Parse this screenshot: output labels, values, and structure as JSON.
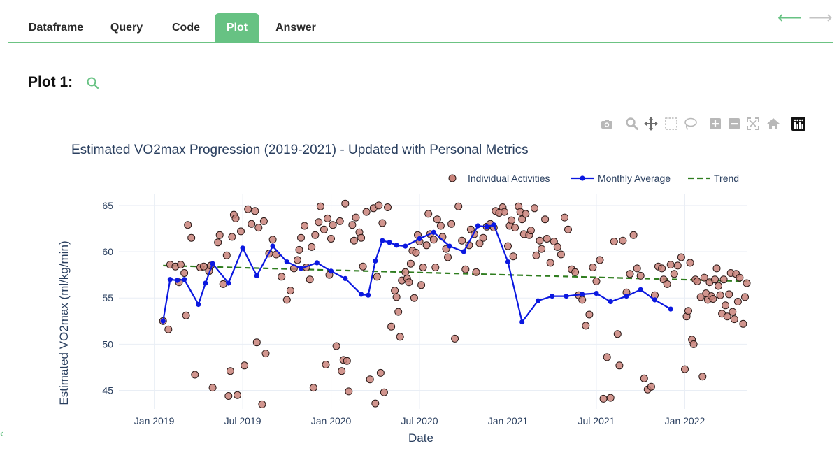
{
  "tabs": [
    {
      "label": "Dataframe",
      "active": false
    },
    {
      "label": "Query",
      "active": false
    },
    {
      "label": "Code",
      "active": false
    },
    {
      "label": "Plot",
      "active": true
    },
    {
      "label": "Answer",
      "active": false
    }
  ],
  "nav": {
    "back": "⟵",
    "forward": "⟶",
    "back_color": "#67c283",
    "forward_color": "#c4c4c4"
  },
  "plot_heading": "Plot 1:",
  "accent_color": "#67c283",
  "left_marker": "‹",
  "modebar_icons": [
    "camera-icon",
    "zoom-icon",
    "pan-icon",
    "box-select-icon",
    "lasso-icon",
    "zoom-in-icon",
    "zoom-out-icon",
    "autoscale-icon",
    "reset-home-icon",
    "plotly-logo-icon"
  ],
  "chart_data": {
    "type": "scatter",
    "title": "Estimated VO2max Progression (2019-2021) - Updated with Personal Metrics",
    "xlabel": "Date",
    "ylabel": "Estimated VO2max (ml/kg/min)",
    "xlim": [
      2018.8,
      2022.35
    ],
    "ylim": [
      43,
      66.2
    ],
    "x_ticks": [
      {
        "v": 2019.0,
        "label": "Jan 2019"
      },
      {
        "v": 2019.5,
        "label": "Jul 2019"
      },
      {
        "v": 2020.0,
        "label": "Jan 2020"
      },
      {
        "v": 2020.5,
        "label": "Jul 2020"
      },
      {
        "v": 2021.0,
        "label": "Jan 2021"
      },
      {
        "v": 2021.5,
        "label": "Jul 2021"
      },
      {
        "v": 2022.0,
        "label": "Jan 2022"
      }
    ],
    "y_ticks": [
      45,
      50,
      55,
      60,
      65
    ],
    "legend": {
      "position": "top-right",
      "entries": [
        "Individual Activities",
        "Monthly Average",
        "Trend"
      ]
    },
    "series": [
      {
        "name": "Individual Activities",
        "kind": "markers",
        "color": "#c9837a",
        "points": [
          [
            2019.05,
            52.5
          ],
          [
            2019.08,
            51.6
          ],
          [
            2019.09,
            58.6
          ],
          [
            2019.12,
            58.4
          ],
          [
            2019.14,
            56.7
          ],
          [
            2019.15,
            58.6
          ],
          [
            2019.17,
            57.7
          ],
          [
            2019.18,
            53.1
          ],
          [
            2019.19,
            62.9
          ],
          [
            2019.21,
            61.5
          ],
          [
            2019.23,
            46.7
          ],
          [
            2019.26,
            58.3
          ],
          [
            2019.28,
            58.4
          ],
          [
            2019.31,
            57.9
          ],
          [
            2019.32,
            58.5
          ],
          [
            2019.33,
            45.3
          ],
          [
            2019.36,
            61.0
          ],
          [
            2019.37,
            61.8
          ],
          [
            2019.39,
            56.5
          ],
          [
            2019.41,
            59.6
          ],
          [
            2019.42,
            44.4
          ],
          [
            2019.43,
            47.1
          ],
          [
            2019.44,
            61.6
          ],
          [
            2019.45,
            64.0
          ],
          [
            2019.46,
            63.6
          ],
          [
            2019.47,
            44.5
          ],
          [
            2019.49,
            62.2
          ],
          [
            2019.51,
            47.7
          ],
          [
            2019.53,
            64.6
          ],
          [
            2019.55,
            63.0
          ],
          [
            2019.57,
            64.4
          ],
          [
            2019.58,
            50.2
          ],
          [
            2019.59,
            62.6
          ],
          [
            2019.61,
            43.5
          ],
          [
            2019.62,
            63.3
          ],
          [
            2019.63,
            49.0
          ],
          [
            2019.65,
            59.8
          ],
          [
            2019.67,
            61.3
          ],
          [
            2019.69,
            59.7
          ],
          [
            2019.72,
            57.3
          ],
          [
            2019.75,
            54.8
          ],
          [
            2019.77,
            55.8
          ],
          [
            2019.79,
            58.2
          ],
          [
            2019.81,
            59.1
          ],
          [
            2019.82,
            60.2
          ],
          [
            2019.83,
            61.5
          ],
          [
            2019.85,
            62.8
          ],
          [
            2019.86,
            58.3
          ],
          [
            2019.88,
            57.0
          ],
          [
            2019.89,
            60.5
          ],
          [
            2019.9,
            45.3
          ],
          [
            2019.91,
            61.8
          ],
          [
            2019.93,
            63.2
          ],
          [
            2019.94,
            64.9
          ],
          [
            2019.96,
            62.4
          ],
          [
            2019.97,
            47.8
          ],
          [
            2019.98,
            63.6
          ],
          [
            2019.99,
            57.5
          ],
          [
            2020.0,
            61.4
          ],
          [
            2020.01,
            62.9
          ],
          [
            2020.03,
            49.8
          ],
          [
            2020.05,
            63.3
          ],
          [
            2020.06,
            47.1
          ],
          [
            2020.07,
            48.3
          ],
          [
            2020.08,
            65.2
          ],
          [
            2020.09,
            48.2
          ],
          [
            2020.1,
            44.9
          ],
          [
            2020.12,
            62.9
          ],
          [
            2020.13,
            61.2
          ],
          [
            2020.14,
            63.7
          ],
          [
            2020.16,
            62.1
          ],
          [
            2020.17,
            61.5
          ],
          [
            2020.18,
            58.4
          ],
          [
            2020.2,
            64.3
          ],
          [
            2020.22,
            46.2
          ],
          [
            2020.24,
            64.7
          ],
          [
            2020.25,
            43.6
          ],
          [
            2020.26,
            57.3
          ],
          [
            2020.27,
            65.0
          ],
          [
            2020.28,
            46.9
          ],
          [
            2020.29,
            63.1
          ],
          [
            2020.3,
            44.8
          ],
          [
            2020.32,
            64.8
          ],
          [
            2020.34,
            51.9
          ],
          [
            2020.36,
            55.8
          ],
          [
            2020.37,
            55.1
          ],
          [
            2020.38,
            53.5
          ],
          [
            2020.39,
            50.8
          ],
          [
            2020.4,
            56.9
          ],
          [
            2020.42,
            57.8
          ],
          [
            2020.43,
            57.1
          ],
          [
            2020.44,
            56.7
          ],
          [
            2020.45,
            58.7
          ],
          [
            2020.46,
            60.1
          ],
          [
            2020.47,
            55.0
          ],
          [
            2020.48,
            59.9
          ],
          [
            2020.49,
            61.8
          ],
          [
            2020.5,
            61.1
          ],
          [
            2020.51,
            56.4
          ],
          [
            2020.52,
            58.3
          ],
          [
            2020.54,
            60.7
          ],
          [
            2020.55,
            64.1
          ],
          [
            2020.56,
            61.9
          ],
          [
            2020.58,
            61.3
          ],
          [
            2020.59,
            58.3
          ],
          [
            2020.6,
            63.5
          ],
          [
            2020.62,
            62.8
          ],
          [
            2020.63,
            61.6
          ],
          [
            2020.65,
            60.3
          ],
          [
            2020.66,
            59.4
          ],
          [
            2020.68,
            63.0
          ],
          [
            2020.7,
            50.6
          ],
          [
            2020.72,
            64.9
          ],
          [
            2020.74,
            61.2
          ],
          [
            2020.76,
            58.1
          ],
          [
            2020.78,
            60.7
          ],
          [
            2020.79,
            62.4
          ],
          [
            2020.81,
            61.9
          ],
          [
            2020.82,
            57.8
          ],
          [
            2020.84,
            60.9
          ],
          [
            2020.86,
            61.5
          ],
          [
            2020.88,
            62.7
          ],
          [
            2020.9,
            63.0
          ],
          [
            2020.92,
            62.6
          ],
          [
            2020.93,
            64.4
          ],
          [
            2020.95,
            64.2
          ],
          [
            2020.97,
            64.8
          ],
          [
            2020.98,
            64.3
          ],
          [
            2021.0,
            60.6
          ],
          [
            2021.01,
            62.8
          ],
          [
            2021.02,
            63.4
          ],
          [
            2021.03,
            59.5
          ],
          [
            2021.04,
            62.6
          ],
          [
            2021.06,
            64.9
          ],
          [
            2021.07,
            64.3
          ],
          [
            2021.08,
            63.5
          ],
          [
            2021.09,
            61.9
          ],
          [
            2021.1,
            64.1
          ],
          [
            2021.12,
            61.8
          ],
          [
            2021.13,
            62.3
          ],
          [
            2021.15,
            64.7
          ],
          [
            2021.16,
            59.6
          ],
          [
            2021.18,
            61.2
          ],
          [
            2021.19,
            60.3
          ],
          [
            2021.21,
            63.5
          ],
          [
            2021.22,
            61.4
          ],
          [
            2021.24,
            58.8
          ],
          [
            2021.26,
            61.1
          ],
          [
            2021.28,
            60.5
          ],
          [
            2021.3,
            59.7
          ],
          [
            2021.32,
            63.7
          ],
          [
            2021.34,
            62.4
          ],
          [
            2021.36,
            58.1
          ],
          [
            2021.38,
            57.8
          ],
          [
            2021.4,
            55.3
          ],
          [
            2021.42,
            54.8
          ],
          [
            2021.44,
            52.0
          ],
          [
            2021.46,
            53.2
          ],
          [
            2021.48,
            58.3
          ],
          [
            2021.5,
            56.8
          ],
          [
            2021.52,
            59.1
          ],
          [
            2021.54,
            44.1
          ],
          [
            2021.56,
            48.6
          ],
          [
            2021.58,
            44.2
          ],
          [
            2021.6,
            61.1
          ],
          [
            2021.62,
            51.1
          ],
          [
            2021.63,
            47.7
          ],
          [
            2021.65,
            61.2
          ],
          [
            2021.67,
            55.6
          ],
          [
            2021.69,
            57.6
          ],
          [
            2021.71,
            61.8
          ],
          [
            2021.73,
            58.2
          ],
          [
            2021.75,
            57.4
          ],
          [
            2021.77,
            46.3
          ],
          [
            2021.79,
            45.1
          ],
          [
            2021.81,
            45.4
          ],
          [
            2021.83,
            55.3
          ],
          [
            2021.85,
            58.4
          ],
          [
            2021.87,
            58.2
          ],
          [
            2021.88,
            57.0
          ],
          [
            2021.9,
            56.5
          ],
          [
            2021.92,
            58.6
          ],
          [
            2021.94,
            57.6
          ],
          [
            2021.96,
            58.5
          ],
          [
            2021.98,
            59.4
          ],
          [
            2022.0,
            47.3
          ],
          [
            2022.01,
            53.0
          ],
          [
            2022.02,
            53.6
          ],
          [
            2022.03,
            58.8
          ],
          [
            2022.04,
            50.5
          ],
          [
            2022.05,
            50.0
          ],
          [
            2022.06,
            57.0
          ],
          [
            2022.07,
            56.8
          ],
          [
            2022.09,
            55.1
          ],
          [
            2022.1,
            46.5
          ],
          [
            2022.11,
            57.2
          ],
          [
            2022.12,
            55.5
          ],
          [
            2022.13,
            54.8
          ],
          [
            2022.14,
            56.7
          ],
          [
            2022.15,
            55.2
          ],
          [
            2022.16,
            54.9
          ],
          [
            2022.17,
            57.0
          ],
          [
            2022.18,
            58.2
          ],
          [
            2022.19,
            56.3
          ],
          [
            2022.2,
            55.3
          ],
          [
            2022.21,
            53.3
          ],
          [
            2022.22,
            57.0
          ],
          [
            2022.23,
            54.2
          ],
          [
            2022.24,
            53.0
          ],
          [
            2022.25,
            55.4
          ],
          [
            2022.26,
            57.7
          ],
          [
            2022.27,
            53.5
          ],
          [
            2022.28,
            52.7
          ],
          [
            2022.29,
            57.6
          ],
          [
            2022.3,
            54.6
          ],
          [
            2022.31,
            57.2
          ],
          [
            2022.33,
            52.2
          ],
          [
            2022.34,
            55.1
          ],
          [
            2022.35,
            56.6
          ]
        ]
      },
      {
        "name": "Monthly Average",
        "kind": "lines+markers",
        "color": "#0b18e0",
        "points": [
          [
            2019.05,
            52.5
          ],
          [
            2019.09,
            57.0
          ],
          [
            2019.13,
            56.9
          ],
          [
            2019.17,
            57.0
          ],
          [
            2019.25,
            54.3
          ],
          [
            2019.29,
            56.6
          ],
          [
            2019.33,
            58.7
          ],
          [
            2019.42,
            56.6
          ],
          [
            2019.5,
            60.4
          ],
          [
            2019.58,
            57.4
          ],
          [
            2019.67,
            60.6
          ],
          [
            2019.75,
            58.9
          ],
          [
            2019.83,
            58.2
          ],
          [
            2019.92,
            58.8
          ],
          [
            2020.0,
            57.9
          ],
          [
            2020.08,
            57.1
          ],
          [
            2020.17,
            55.4
          ],
          [
            2020.21,
            55.3
          ],
          [
            2020.25,
            59.0
          ],
          [
            2020.29,
            61.2
          ],
          [
            2020.33,
            61.0
          ],
          [
            2020.37,
            60.7
          ],
          [
            2020.42,
            60.6
          ],
          [
            2020.5,
            61.4
          ],
          [
            2020.58,
            62.1
          ],
          [
            2020.67,
            60.6
          ],
          [
            2020.75,
            60.0
          ],
          [
            2020.83,
            62.8
          ],
          [
            2020.88,
            62.7
          ],
          [
            2020.92,
            62.9
          ],
          [
            2021.0,
            58.9
          ],
          [
            2021.08,
            52.4
          ],
          [
            2021.17,
            54.7
          ],
          [
            2021.25,
            55.2
          ],
          [
            2021.33,
            55.2
          ],
          [
            2021.42,
            55.4
          ],
          [
            2021.5,
            55.5
          ],
          [
            2021.58,
            54.6
          ],
          [
            2021.67,
            55.2
          ],
          [
            2021.75,
            55.9
          ],
          [
            2021.83,
            54.8
          ],
          [
            2021.92,
            53.8
          ]
        ]
      },
      {
        "name": "Trend",
        "kind": "dashed-line",
        "color": "#2f7d1f",
        "points": [
          [
            2019.05,
            58.5
          ],
          [
            2022.35,
            56.8
          ]
        ]
      }
    ]
  }
}
